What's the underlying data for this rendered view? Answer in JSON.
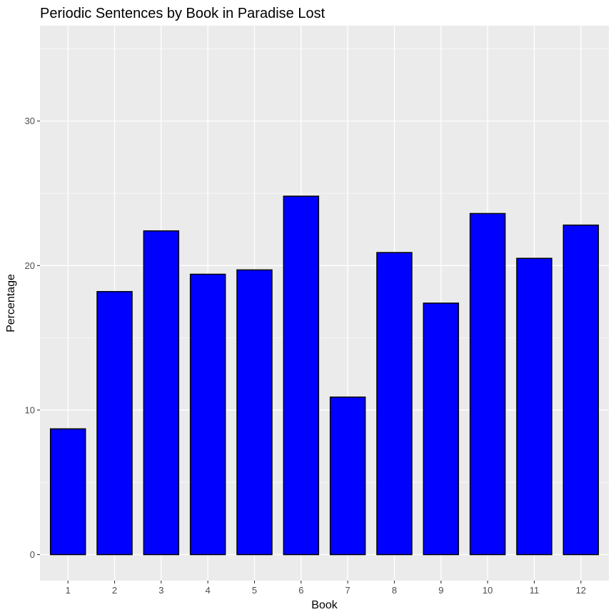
{
  "chart_data": {
    "type": "bar",
    "title": "Periodic Sentences by Book in Paradise Lost",
    "xlabel": "Book",
    "ylabel": "Percentage",
    "categories": [
      "1",
      "2",
      "3",
      "4",
      "5",
      "6",
      "7",
      "8",
      "9",
      "10",
      "11",
      "12"
    ],
    "values": [
      8.7,
      18.2,
      22.4,
      19.4,
      19.7,
      24.8,
      10.9,
      20.9,
      17.4,
      23.6,
      20.5,
      22.8
    ],
    "ylim": [
      -1.8,
      36.6
    ],
    "yticks": [
      0,
      10,
      20,
      30
    ],
    "grid": true,
    "legend": "none",
    "colors": {
      "bar_fill": "#0000ff",
      "bar_stroke": "#000000",
      "panel_bg": "#ebebeb",
      "grid_major": "#ffffff",
      "tick_text": "#4d4d4d"
    }
  }
}
